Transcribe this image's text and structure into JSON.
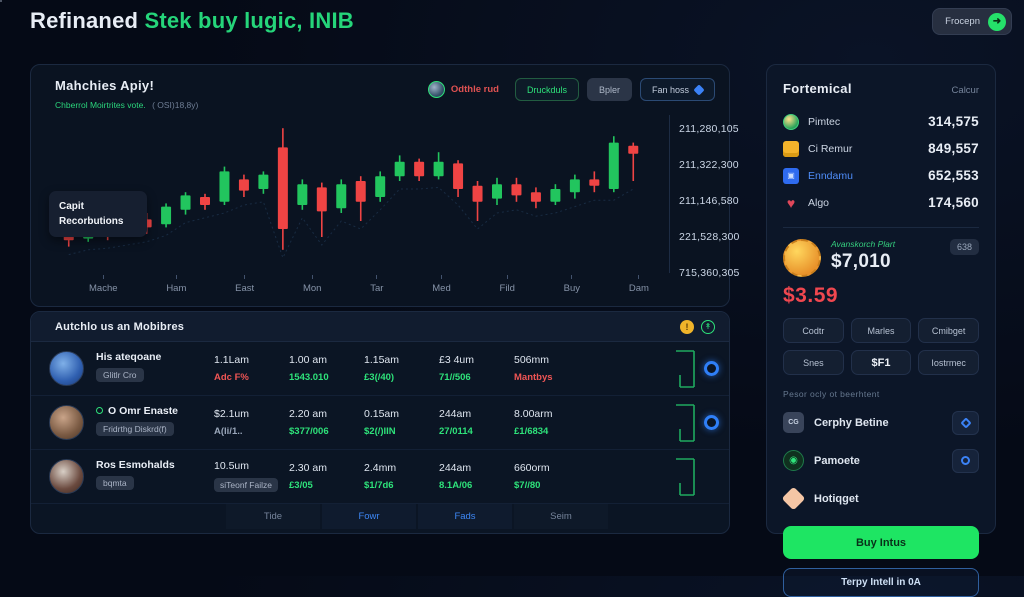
{
  "header": {
    "title_prefix": "Refinaned ",
    "title_accent": "Stek buy lugic, INIB",
    "action_label": "Frocepn"
  },
  "chart_panel": {
    "title": "Mahchies Apiy!",
    "subtitle": "Chberrol Moirtrites vote.",
    "subtitle_note": "( OSI)18,8y)",
    "trader_name": "Odthle rud",
    "buttons": [
      {
        "label": "Druckduls",
        "style": "green-outline"
      },
      {
        "label": "Bpler",
        "style": "gray"
      },
      {
        "label": "Fan hoss",
        "style": "blue-outline",
        "icon": "diamond-dropdown"
      }
    ],
    "tooltip": {
      "line1": "Capit",
      "line2": "Recorbutions"
    }
  },
  "chart_data": {
    "type": "candlestick",
    "title": "Mahchies Apiy!",
    "x_labels": [
      "Mache",
      "Ham",
      "East",
      "Mon",
      "Tar",
      "Med",
      "Fild",
      "Buy",
      "Dam"
    ],
    "y_labels": [
      "211,280,105",
      "211,322,300",
      "211,146,580",
      "221,528,300",
      "715,360,305"
    ],
    "up_color": "#22c55e",
    "down_color": "#ef4444",
    "price_scale": [
      0,
      100
    ],
    "candles": [
      {
        "o": 22,
        "h": 25,
        "l": 14,
        "c": 18
      },
      {
        "o": 19,
        "h": 26,
        "l": 17,
        "c": 24
      },
      {
        "o": 22,
        "h": 24,
        "l": 18,
        "c": 20
      },
      {
        "o": 22,
        "h": 33,
        "l": 20,
        "c": 31
      },
      {
        "o": 31,
        "h": 35,
        "l": 22,
        "c": 26
      },
      {
        "o": 28,
        "h": 41,
        "l": 26,
        "c": 39
      },
      {
        "o": 37,
        "h": 48,
        "l": 34,
        "c": 46
      },
      {
        "o": 45,
        "h": 47,
        "l": 37,
        "c": 40
      },
      {
        "o": 42,
        "h": 64,
        "l": 40,
        "c": 61
      },
      {
        "o": 56,
        "h": 59,
        "l": 45,
        "c": 49
      },
      {
        "o": 50,
        "h": 61,
        "l": 47,
        "c": 59
      },
      {
        "o": 76,
        "h": 88,
        "l": 12,
        "c": 25
      },
      {
        "o": 40,
        "h": 56,
        "l": 37,
        "c": 53
      },
      {
        "o": 51,
        "h": 54,
        "l": 20,
        "c": 36
      },
      {
        "o": 38,
        "h": 56,
        "l": 35,
        "c": 53
      },
      {
        "o": 55,
        "h": 58,
        "l": 30,
        "c": 42
      },
      {
        "o": 45,
        "h": 61,
        "l": 42,
        "c": 58
      },
      {
        "o": 58,
        "h": 71,
        "l": 55,
        "c": 67
      },
      {
        "o": 67,
        "h": 69,
        "l": 55,
        "c": 58
      },
      {
        "o": 58,
        "h": 73,
        "l": 56,
        "c": 67
      },
      {
        "o": 66,
        "h": 68,
        "l": 45,
        "c": 50
      },
      {
        "o": 52,
        "h": 55,
        "l": 30,
        "c": 42
      },
      {
        "o": 44,
        "h": 57,
        "l": 40,
        "c": 53
      },
      {
        "o": 53,
        "h": 57,
        "l": 42,
        "c": 46
      },
      {
        "o": 48,
        "h": 51,
        "l": 38,
        "c": 42
      },
      {
        "o": 42,
        "h": 53,
        "l": 40,
        "c": 50
      },
      {
        "o": 48,
        "h": 59,
        "l": 44,
        "c": 56
      },
      {
        "o": 56,
        "h": 61,
        "l": 48,
        "c": 52
      },
      {
        "o": 50,
        "h": 83,
        "l": 48,
        "c": 79
      },
      {
        "o": 77,
        "h": 79,
        "l": 55,
        "c": 72
      }
    ]
  },
  "table": {
    "title": "Autchlo us an Mobibres",
    "rows": [
      {
        "name": "His ateqoane",
        "dot": false,
        "badge": "Glitlr Cro",
        "avatar": "radial-gradient(circle at 40% 35%, #7fb0e8, #2f5fb0 60%, #1b3a72)",
        "cells": [
          {
            "top": "1.1Lam",
            "bottom": "Adc F%",
            "color": "red"
          },
          {
            "top": "1.00 am",
            "bottom": "1543.010",
            "color": "green"
          },
          {
            "top": "1.15am",
            "bottom": "£3(/40)",
            "color": "green"
          },
          {
            "top": "£3 4um",
            "bottom": "71//506",
            "color": "green"
          },
          {
            "top": "506mm",
            "bottom": "Mantbys",
            "color": "red"
          }
        ],
        "action": true
      },
      {
        "name": "O Omr Enaste",
        "dot": true,
        "badge": "Fridrthg Diskrd(f)",
        "avatar": "radial-gradient(circle at 40% 35%, #c9a489, #7a5a43 60%, #4a3526)",
        "cells": [
          {
            "top": "$2.1um",
            "bottom": "A(li/1..",
            "color": "gray"
          },
          {
            "top": "2.20 am",
            "bottom": "$377/006",
            "color": "green"
          },
          {
            "top": "0.15am",
            "bottom": "$2(/)IIN",
            "color": "green"
          },
          {
            "top": "244am",
            "bottom": "27/0114",
            "color": "green"
          },
          {
            "top": "8.00arm",
            "bottom": "£1/6834",
            "color": "green"
          }
        ],
        "action": true
      },
      {
        "name": "Ros Esmohalds",
        "dot": false,
        "badge": "bqmta",
        "avatar": "radial-gradient(circle at 40% 35%, #d8cfc6, #6b4a3f 60%, #3a2820)",
        "cells": [
          {
            "top": "10.5um",
            "bottom": "siTeonf Failze",
            "color": "badge-style"
          },
          {
            "top": "2.30 am",
            "bottom": "£3/05",
            "color": "green"
          },
          {
            "top": "2.4mm",
            "bottom": "$1/7d6",
            "color": "green"
          },
          {
            "top": "244am",
            "bottom": "8.1A/06",
            "color": "green"
          },
          {
            "top": "660orm",
            "bottom": "$7//80",
            "color": "green"
          }
        ],
        "action": false
      }
    ],
    "tabs": [
      {
        "label": "Tide",
        "active": false
      },
      {
        "label": "Fowr",
        "active": true
      },
      {
        "label": "Fads",
        "active": true
      },
      {
        "label": "Seim",
        "active": false
      }
    ]
  },
  "sidebar": {
    "title": "Fortemical",
    "action": "Calcur",
    "stats": [
      {
        "label": "Pimtec",
        "value": "314,575",
        "icon": "coin-green",
        "glyph": ""
      },
      {
        "label": "Ci Remur",
        "value": "849,557",
        "icon": "card-yellow",
        "glyph": ""
      },
      {
        "label": "Enndamu",
        "value": "652,553",
        "icon": "square-blue",
        "glyph": "▣",
        "label_color": "#4f8df9"
      },
      {
        "label": "Algo",
        "value": "174,560",
        "icon": "heart-red",
        "glyph": "♥"
      }
    ],
    "asset": {
      "label": "Avanskorch Plart",
      "value": "$7,010",
      "badge": "638",
      "price": "$3.59"
    },
    "grid_buttons": [
      "Codtr",
      "Marles",
      "Cmibget",
      "Snes",
      "$F1",
      "Iostrmec"
    ],
    "settings_label": "Pesor ocly ot beerhtent",
    "settings": [
      {
        "label": "Cerphy Betine",
        "icon": "chip-gray",
        "glyph": "CG",
        "control": "diamond"
      },
      {
        "label": "Pamoete",
        "icon": "globe-green",
        "glyph": "◉",
        "control": "circle"
      },
      {
        "label": "Hotiqget",
        "icon": "diamond-peach",
        "glyph": "",
        "control": null
      }
    ],
    "primary_button": "Buy Intus",
    "secondary_button": "Terpy Intell in 0A"
  }
}
